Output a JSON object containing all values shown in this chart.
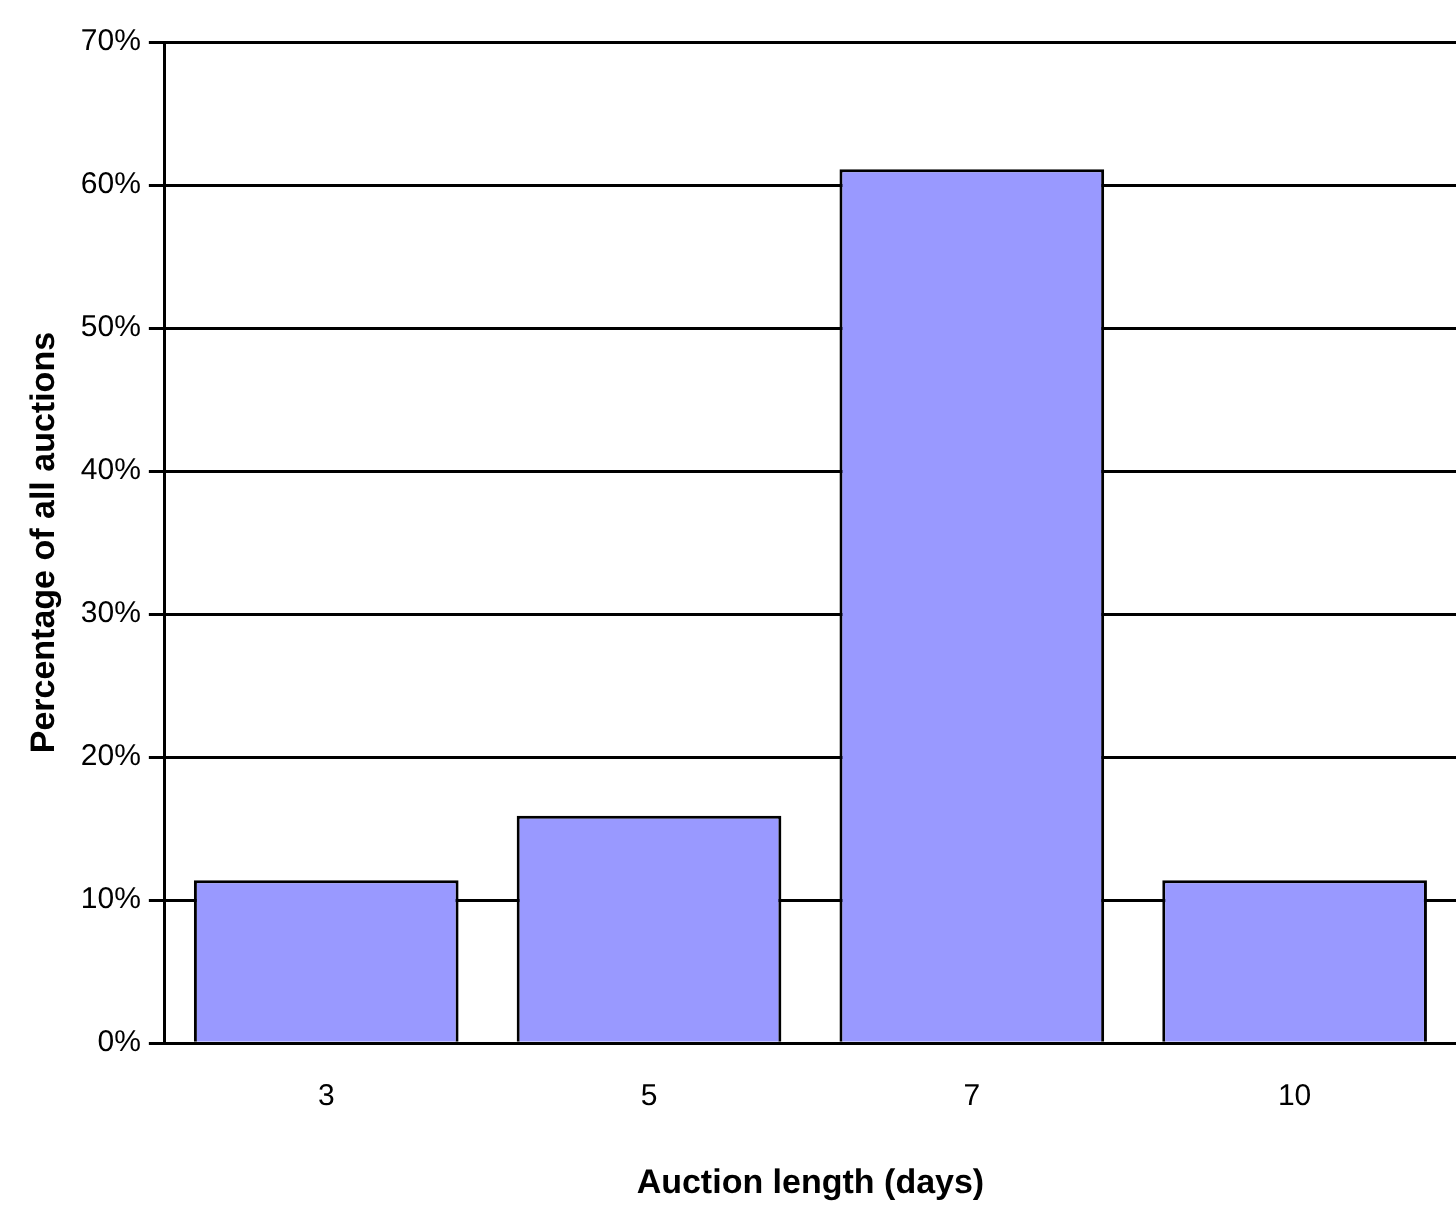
{
  "chart_data": {
    "type": "bar",
    "xlabel": "Auction length (days)",
    "ylabel": "Percentage of all auctions",
    "categories": [
      "3",
      "5",
      "7",
      "10"
    ],
    "values": [
      11.4,
      15.9,
      61.1,
      11.4
    ],
    "color": "#9999ff",
    "ylim": [
      0,
      70
    ],
    "yticks": [
      {
        "value": 0,
        "label": "0%"
      },
      {
        "value": 10,
        "label": "10%"
      },
      {
        "value": 20,
        "label": "20%"
      },
      {
        "value": 30,
        "label": "30%"
      },
      {
        "value": 40,
        "label": "40%"
      },
      {
        "value": 50,
        "label": "50%"
      },
      {
        "value": 60,
        "label": "60%"
      },
      {
        "value": 70,
        "label": "70%"
      }
    ],
    "grid": "y",
    "legend": false
  }
}
